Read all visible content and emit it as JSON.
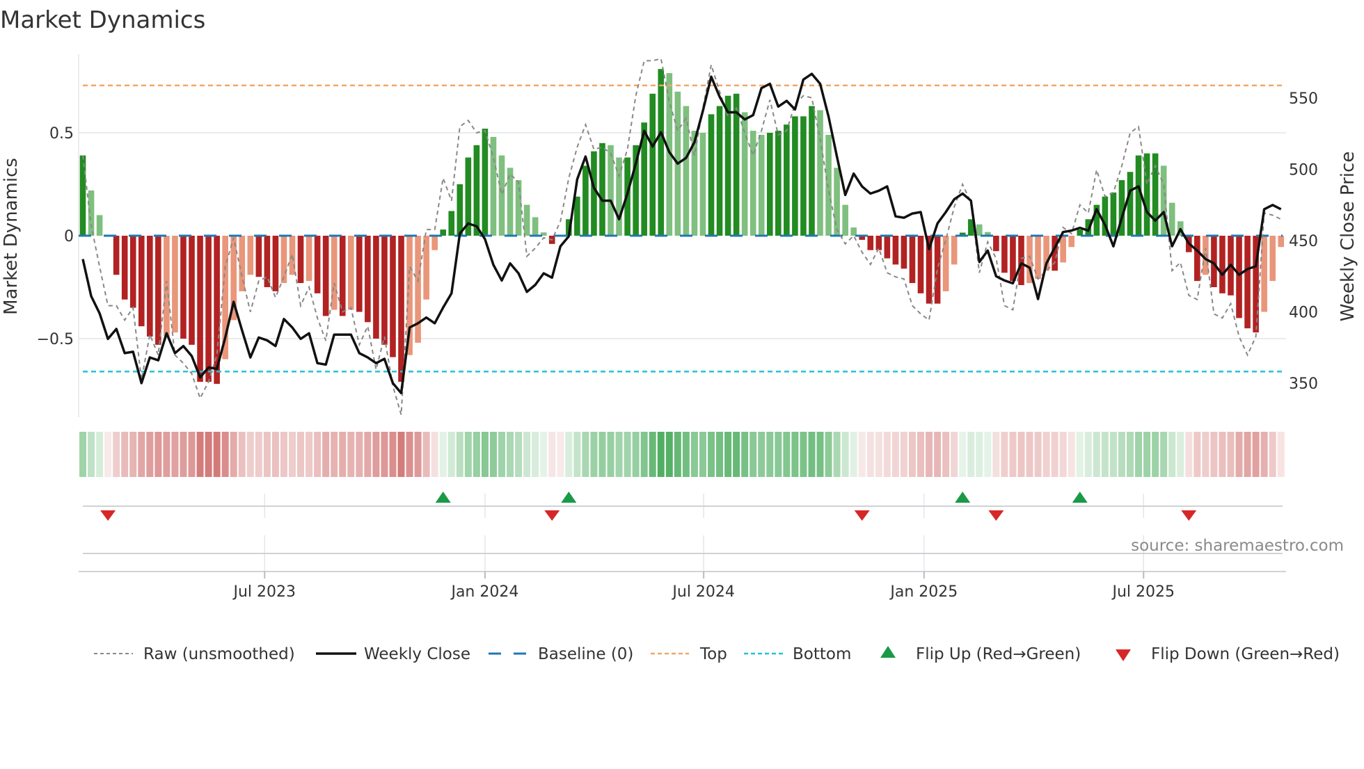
{
  "title": "Market Dynamics",
  "source": "source: sharemaestro.com",
  "colors": {
    "bar_strong_pos": "#228b22",
    "bar_weak_pos": "#7fbf7f",
    "bar_strong_neg": "#b22222",
    "bar_weak_neg": "#e9967a",
    "raw": "#888888",
    "close": "#111111",
    "baseline": "#1f77b4",
    "top": "#f0a766",
    "bottom": "#22c3d6",
    "flip_up": "#1a9a46",
    "flip_down": "#d62728",
    "grid": "#e8ebf0"
  },
  "chart_data": {
    "type": "bar",
    "title": "Market Dynamics",
    "ylabel": "Market Dynamics",
    "y2label": "Weekly Close Price",
    "ylim": [
      -0.88,
      0.88
    ],
    "y2lim": [
      334,
      578
    ],
    "yticks": [
      {
        "value": 0.5,
        "label": "0.5"
      },
      {
        "value": 0,
        "label": "0"
      },
      {
        "value": -0.5,
        "label": "−0.5"
      }
    ],
    "y2ticks": [
      {
        "value": 550,
        "label": "550"
      },
      {
        "value": 500,
        "label": "500"
      },
      {
        "value": 450,
        "label": "450"
      },
      {
        "value": 400,
        "label": "400"
      },
      {
        "value": 350,
        "label": "350"
      }
    ],
    "xticks": [
      {
        "at_week": 21.7,
        "label": "Jul 2023"
      },
      {
        "at_week": 48.0,
        "label": "Jan 2024"
      },
      {
        "at_week": 74.1,
        "label": "Jul 2024"
      },
      {
        "at_week": 100.4,
        "label": "Jan 2025"
      },
      {
        "at_week": 126.6,
        "label": "Jul 2025"
      }
    ],
    "grid": true,
    "legend_position": "bottom",
    "top_level": 0.73,
    "bottom_level": -0.66,
    "baseline": 0,
    "dynamics": [
      0.39,
      0.22,
      0.1,
      -0.005,
      -0.19,
      -0.31,
      -0.35,
      -0.44,
      -0.49,
      -0.53,
      -0.49,
      -0.47,
      -0.5,
      -0.53,
      -0.71,
      -0.71,
      -0.72,
      -0.6,
      -0.41,
      -0.27,
      -0.19,
      -0.2,
      -0.25,
      -0.27,
      -0.23,
      -0.19,
      -0.23,
      -0.22,
      -0.28,
      -0.39,
      -0.36,
      -0.39,
      -0.36,
      -0.37,
      -0.42,
      -0.5,
      -0.53,
      -0.59,
      -0.71,
      -0.58,
      -0.52,
      -0.31,
      -0.07,
      0.03,
      0.12,
      0.25,
      0.38,
      0.44,
      0.52,
      0.48,
      0.39,
      0.33,
      0.27,
      0.15,
      0.09,
      0.016,
      -0.04,
      -0.005,
      0.08,
      0.19,
      0.34,
      0.41,
      0.45,
      0.44,
      0.38,
      0.38,
      0.44,
      0.55,
      0.69,
      0.81,
      0.79,
      0.7,
      0.63,
      0.51,
      0.5,
      0.59,
      0.63,
      0.68,
      0.69,
      0.6,
      0.51,
      0.49,
      0.5,
      0.51,
      0.54,
      0.58,
      0.58,
      0.63,
      0.61,
      0.49,
      0.33,
      0.15,
      0.04,
      -0.02,
      -0.07,
      -0.07,
      -0.11,
      -0.14,
      -0.16,
      -0.23,
      -0.28,
      -0.33,
      -0.33,
      -0.27,
      -0.14,
      0.015,
      0.08,
      0.055,
      0.018,
      -0.075,
      -0.18,
      -0.22,
      -0.24,
      -0.23,
      -0.21,
      -0.17,
      -0.17,
      -0.13,
      -0.055,
      0.03,
      0.08,
      0.15,
      0.19,
      0.21,
      0.27,
      0.31,
      0.39,
      0.4,
      0.4,
      0.34,
      0.16,
      0.07,
      -0.08,
      -0.22,
      -0.19,
      -0.25,
      -0.28,
      -0.29,
      -0.4,
      -0.45,
      -0.47,
      -0.37,
      -0.22,
      -0.055
    ],
    "raw": [
      0.39,
      0.05,
      -0.15,
      -0.34,
      -0.34,
      -0.41,
      -0.35,
      -0.7,
      -0.48,
      -0.58,
      -0.22,
      -0.58,
      -0.62,
      -0.67,
      -0.79,
      -0.71,
      -0.58,
      -0.15,
      -0.01,
      -0.2,
      -0.37,
      -0.22,
      -0.2,
      -0.3,
      -0.2,
      -0.09,
      -0.34,
      -0.25,
      -0.4,
      -0.51,
      -0.23,
      -0.37,
      -0.35,
      -0.53,
      -0.44,
      -0.65,
      -0.49,
      -0.73,
      -0.87,
      -0.15,
      -0.22,
      0.03,
      0.03,
      0.28,
      0.17,
      0.53,
      0.56,
      0.5,
      0.51,
      0.38,
      0.2,
      0.3,
      0.26,
      -0.1,
      -0.06,
      -0.01,
      -0.02,
      0.07,
      0.28,
      0.43,
      0.54,
      0.42,
      0.43,
      0.4,
      0.29,
      0.42,
      0.68,
      0.85,
      0.85,
      0.86,
      0.65,
      0.51,
      0.57,
      0.39,
      0.62,
      0.83,
      0.7,
      0.58,
      0.62,
      0.5,
      0.39,
      0.51,
      0.66,
      0.49,
      0.51,
      0.64,
      0.68,
      0.67,
      0.47,
      0.22,
      0.03,
      -0.04,
      0.0,
      -0.08,
      -0.14,
      -0.06,
      -0.18,
      -0.2,
      -0.21,
      -0.34,
      -0.38,
      -0.41,
      -0.16,
      -0.02,
      0.14,
      0.25,
      0.16,
      -0.18,
      -0.03,
      -0.11,
      -0.34,
      -0.36,
      -0.11,
      -0.1,
      -0.21,
      -0.17,
      -0.13,
      0.04,
      0.01,
      0.15,
      0.11,
      0.32,
      0.19,
      0.21,
      0.34,
      0.5,
      0.53,
      0.25,
      0.34,
      0.25,
      -0.17,
      -0.13,
      -0.29,
      -0.31,
      -0.06,
      -0.38,
      -0.4,
      -0.33,
      -0.49,
      -0.58,
      -0.49,
      0.11,
      0.1,
      0.08
    ],
    "weekly_close": [
      437,
      411,
      399,
      381,
      388,
      371,
      372,
      350,
      368,
      366,
      385,
      371,
      376,
      369,
      354,
      361,
      360,
      382,
      407,
      387,
      368,
      382,
      380,
      376,
      395,
      389,
      381,
      385,
      364,
      363,
      384,
      384,
      384,
      371,
      368,
      364,
      367,
      350,
      343,
      389,
      392,
      396,
      392,
      403,
      413,
      455,
      462,
      460,
      451,
      433,
      422,
      434,
      427,
      414,
      419,
      427,
      424,
      446,
      453,
      493,
      509,
      487,
      478,
      478,
      465,
      483,
      504,
      527,
      516,
      526,
      512,
      504,
      508,
      519,
      541,
      565,
      551,
      540,
      540,
      535,
      538,
      557,
      560,
      544,
      548,
      542,
      563,
      567,
      560,
      537,
      509,
      482,
      497,
      488,
      483,
      485,
      488,
      467,
      466,
      469,
      470,
      444,
      462,
      470,
      479,
      483,
      478,
      435,
      443,
      425,
      422,
      420,
      434,
      431,
      409,
      434,
      445,
      456,
      457,
      459,
      457,
      472,
      461,
      446,
      466,
      485,
      488,
      470,
      464,
      470,
      446,
      458,
      448,
      443,
      437,
      434,
      426,
      433,
      426,
      430,
      432,
      472,
      475,
      472
    ],
    "flip_up_weeks": [
      43,
      58,
      105,
      119
    ],
    "flip_down_weeks": [
      3,
      56,
      93,
      109,
      132
    ]
  },
  "legend": [
    {
      "key": "raw",
      "label": "Raw (unsmoothed)"
    },
    {
      "key": "close",
      "label": "Weekly Close"
    },
    {
      "key": "baseline",
      "label": "Baseline (0)"
    },
    {
      "key": "top",
      "label": "Top"
    },
    {
      "key": "bottom",
      "label": "Bottom"
    },
    {
      "key": "flip_up",
      "label": "Flip Up (Red→Green)"
    },
    {
      "key": "flip_down",
      "label": "Flip Down (Green→Red)"
    }
  ]
}
